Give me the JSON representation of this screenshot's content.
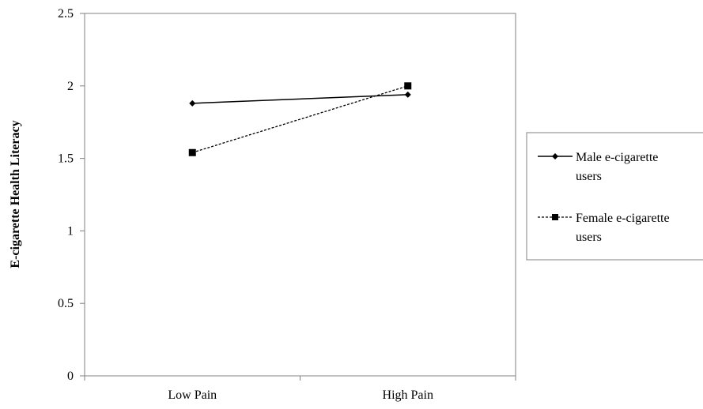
{
  "chart_data": {
    "type": "line",
    "categories": [
      "Low Pain",
      "High Pain"
    ],
    "series": [
      {
        "name": "Male e-cigarette users",
        "legend_lines": [
          "Male e-cigarette",
          "users"
        ],
        "values": [
          1.88,
          1.94
        ],
        "marker": "diamond",
        "line_style": "solid",
        "color": "#000000"
      },
      {
        "name": "Female e-cigarette users",
        "legend_lines": [
          "Female e-cigarette",
          "users"
        ],
        "values": [
          1.54,
          2.0
        ],
        "marker": "square",
        "line_style": "dashed",
        "color": "#000000"
      }
    ],
    "title": "",
    "xlabel": "",
    "ylabel": "E-cigarette Health Literacy",
    "ylim": [
      0,
      2.5
    ],
    "yticks": [
      "0",
      "0.5",
      "1",
      "1.5",
      "2",
      "2.5"
    ],
    "grid": false,
    "legend_position": "right"
  }
}
